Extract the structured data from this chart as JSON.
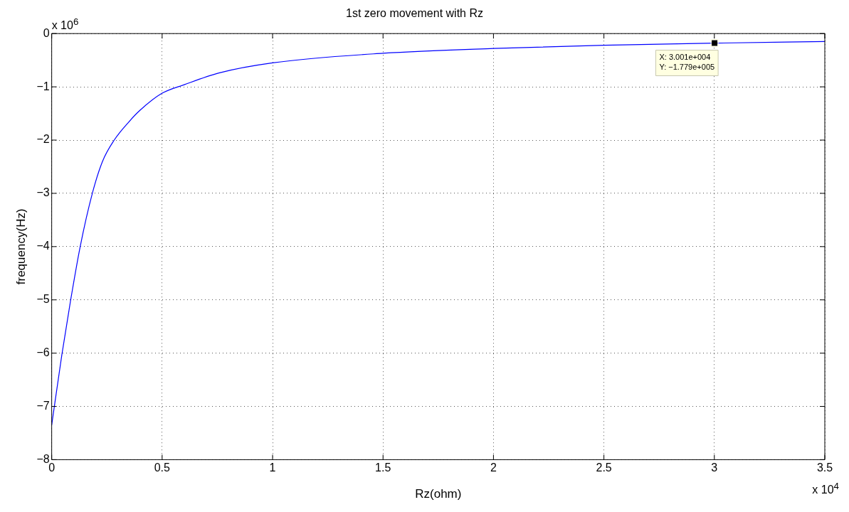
{
  "chart_data": {
    "type": "line",
    "title": "1st zero movement with Rz",
    "xlabel": "Rz(ohm)",
    "ylabel": "frequency(Hz)",
    "x": [
      0,
      0.046,
      0.086,
      0.129,
      0.184,
      0.23,
      0.283,
      0.349,
      0.4,
      0.5,
      0.6,
      0.757,
      1.0,
      1.5,
      2.0,
      2.5,
      3.001,
      3.5
    ],
    "series": [
      {
        "color": "#0000ff",
        "values": [
          -7.35,
          -6.03,
          -5.0,
          -4.0,
          -3.0,
          -2.4,
          -2.0,
          -1.66,
          -1.44,
          -1.12,
          -0.96,
          -0.74,
          -0.55,
          -0.37,
          -0.28,
          -0.22,
          -0.18,
          -0.15
        ]
      }
    ],
    "xlim": [
      0,
      3.5
    ],
    "xticks": [
      0,
      0.5,
      1,
      1.5,
      2,
      2.5,
      3,
      3.5
    ],
    "ylim": [
      -8,
      0
    ],
    "yticks": [
      -8,
      -7,
      -6,
      -5,
      -4,
      -3,
      -2,
      -1,
      0
    ],
    "grid": true,
    "legend": false,
    "marker": "none",
    "line_style": "solid",
    "annotations": [
      {
        "text": "X: 3.001e+004\nY: −1.779e+005",
        "x": 3.001,
        "y": -0.1779
      },
      "x 10$^{6}$",
      "x 10$^{4}$"
    ]
  }
}
